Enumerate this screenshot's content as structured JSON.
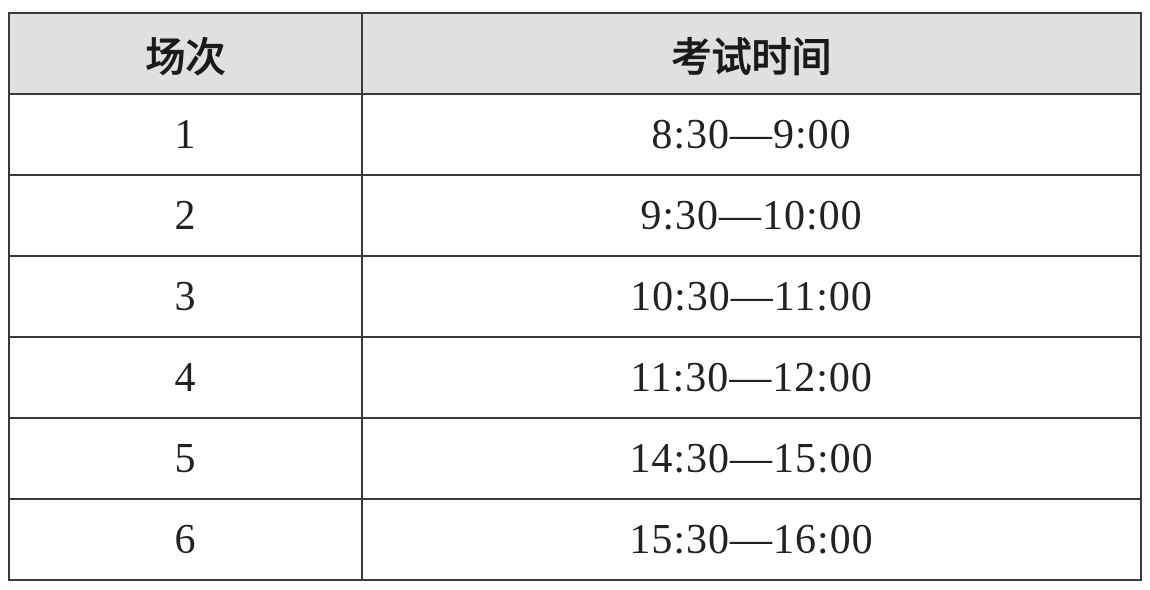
{
  "table": {
    "headers": [
      "场次",
      "考试时间"
    ],
    "rows": [
      {
        "session": "1",
        "time": "8:30—9:00"
      },
      {
        "session": "2",
        "time": "9:30—10:00"
      },
      {
        "session": "3",
        "time": "10:30—11:00"
      },
      {
        "session": "4",
        "time": "11:30—12:00"
      },
      {
        "session": "5",
        "time": "14:30—15:00"
      },
      {
        "session": "6",
        "time": "15:30—16:00"
      }
    ],
    "header_bg": "#e0e0e0"
  }
}
